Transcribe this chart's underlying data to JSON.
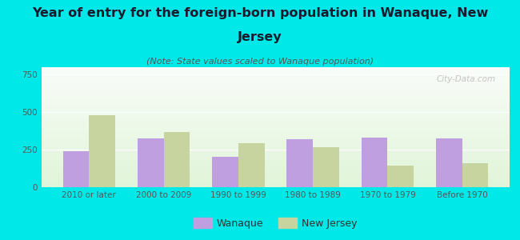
{
  "title_line1": "Year of entry for the foreign-born population in Wanaque, New",
  "title_line2": "Jersey",
  "subtitle": "(Note: State values scaled to Wanaque population)",
  "categories": [
    "2010 or later",
    "2000 to 2009",
    "1990 to 1999",
    "1980 to 1989",
    "1970 to 1979",
    "Before 1970"
  ],
  "wanaque_values": [
    240,
    325,
    205,
    320,
    330,
    325
  ],
  "nj_values": [
    480,
    370,
    295,
    265,
    145,
    160
  ],
  "wanaque_color": "#bf9fdf",
  "nj_color": "#c8d4a0",
  "background_color": "#00e8e8",
  "ylim": [
    0,
    800
  ],
  "yticks": [
    0,
    250,
    500,
    750
  ],
  "bar_width": 0.35,
  "legend_wanaque": "Wanaque",
  "legend_nj": "New Jersey",
  "title_fontsize": 11.5,
  "subtitle_fontsize": 8,
  "tick_fontsize": 7.5,
  "legend_fontsize": 9,
  "watermark": "City-Data.com"
}
